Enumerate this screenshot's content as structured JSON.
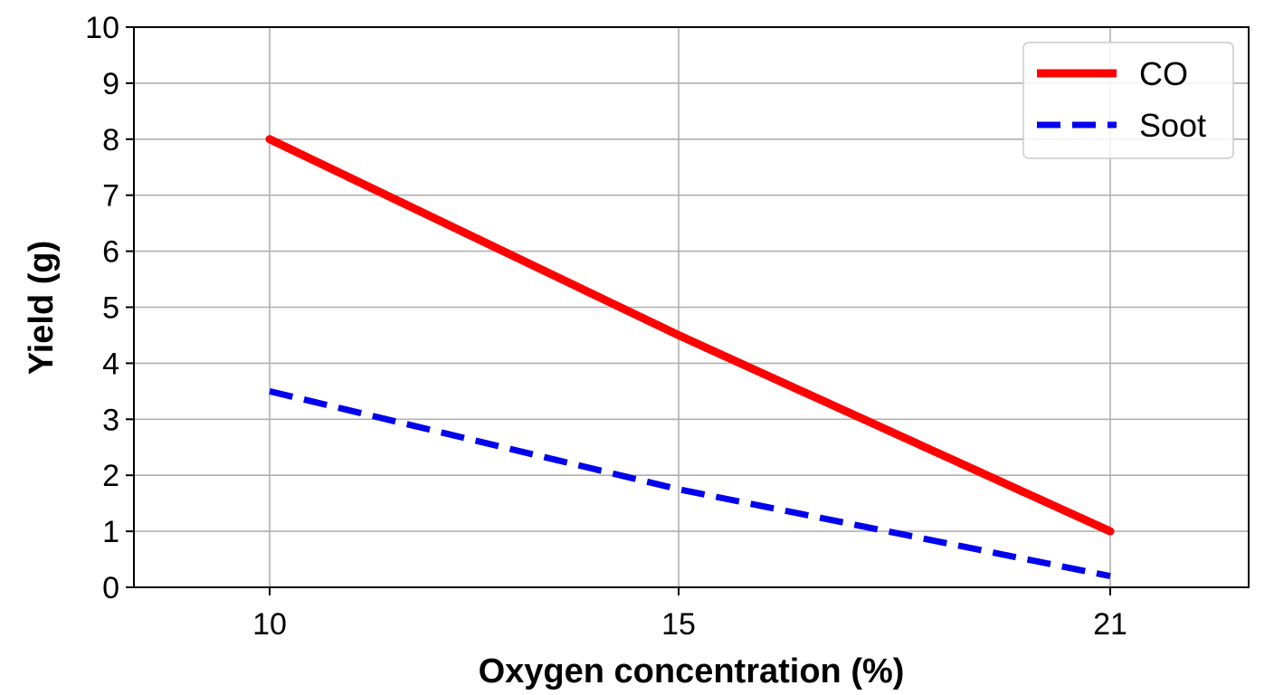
{
  "chart_data": {
    "type": "line",
    "title": "",
    "xlabel": "Oxygen concentration (%)",
    "ylabel": "Yield (g)",
    "categories": [
      "10",
      "15",
      "21"
    ],
    "ylim": [
      0,
      10
    ],
    "yticks": [
      "0",
      "1",
      "2",
      "3",
      "4",
      "5",
      "6",
      "7",
      "8",
      "9",
      "10"
    ],
    "grid": true,
    "legend_position": "top-right",
    "series": [
      {
        "name": "CO",
        "values": [
          8.0,
          4.5,
          1.0
        ],
        "color": "#ff0000",
        "style": "solid"
      },
      {
        "name": "Soot",
        "values": [
          3.5,
          1.75,
          0.2
        ],
        "color": "#0000ee",
        "style": "dashed"
      }
    ]
  }
}
